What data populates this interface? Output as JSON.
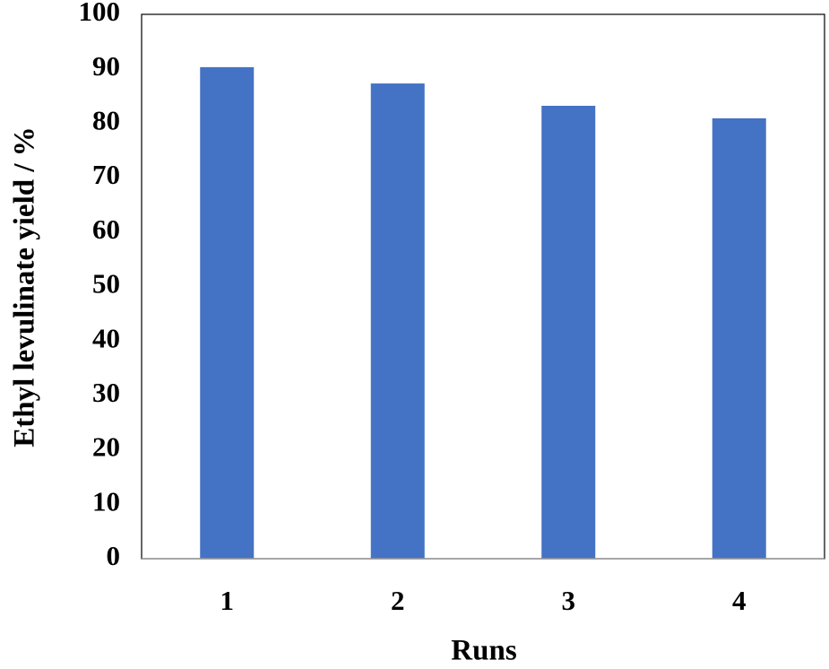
{
  "chart_data": {
    "type": "bar",
    "x_label": "Runs",
    "y_label": "Ethyl levulinate yield / %",
    "categories": [
      "1",
      "2",
      "3",
      "4"
    ],
    "values": [
      90.3,
      87.3,
      83.2,
      80.9
    ],
    "color": "#4472c4",
    "ylim": [
      0,
      100
    ],
    "yticks": [
      0,
      10,
      20,
      30,
      40,
      50,
      60,
      70,
      80,
      90,
      100
    ],
    "grid": false
  }
}
